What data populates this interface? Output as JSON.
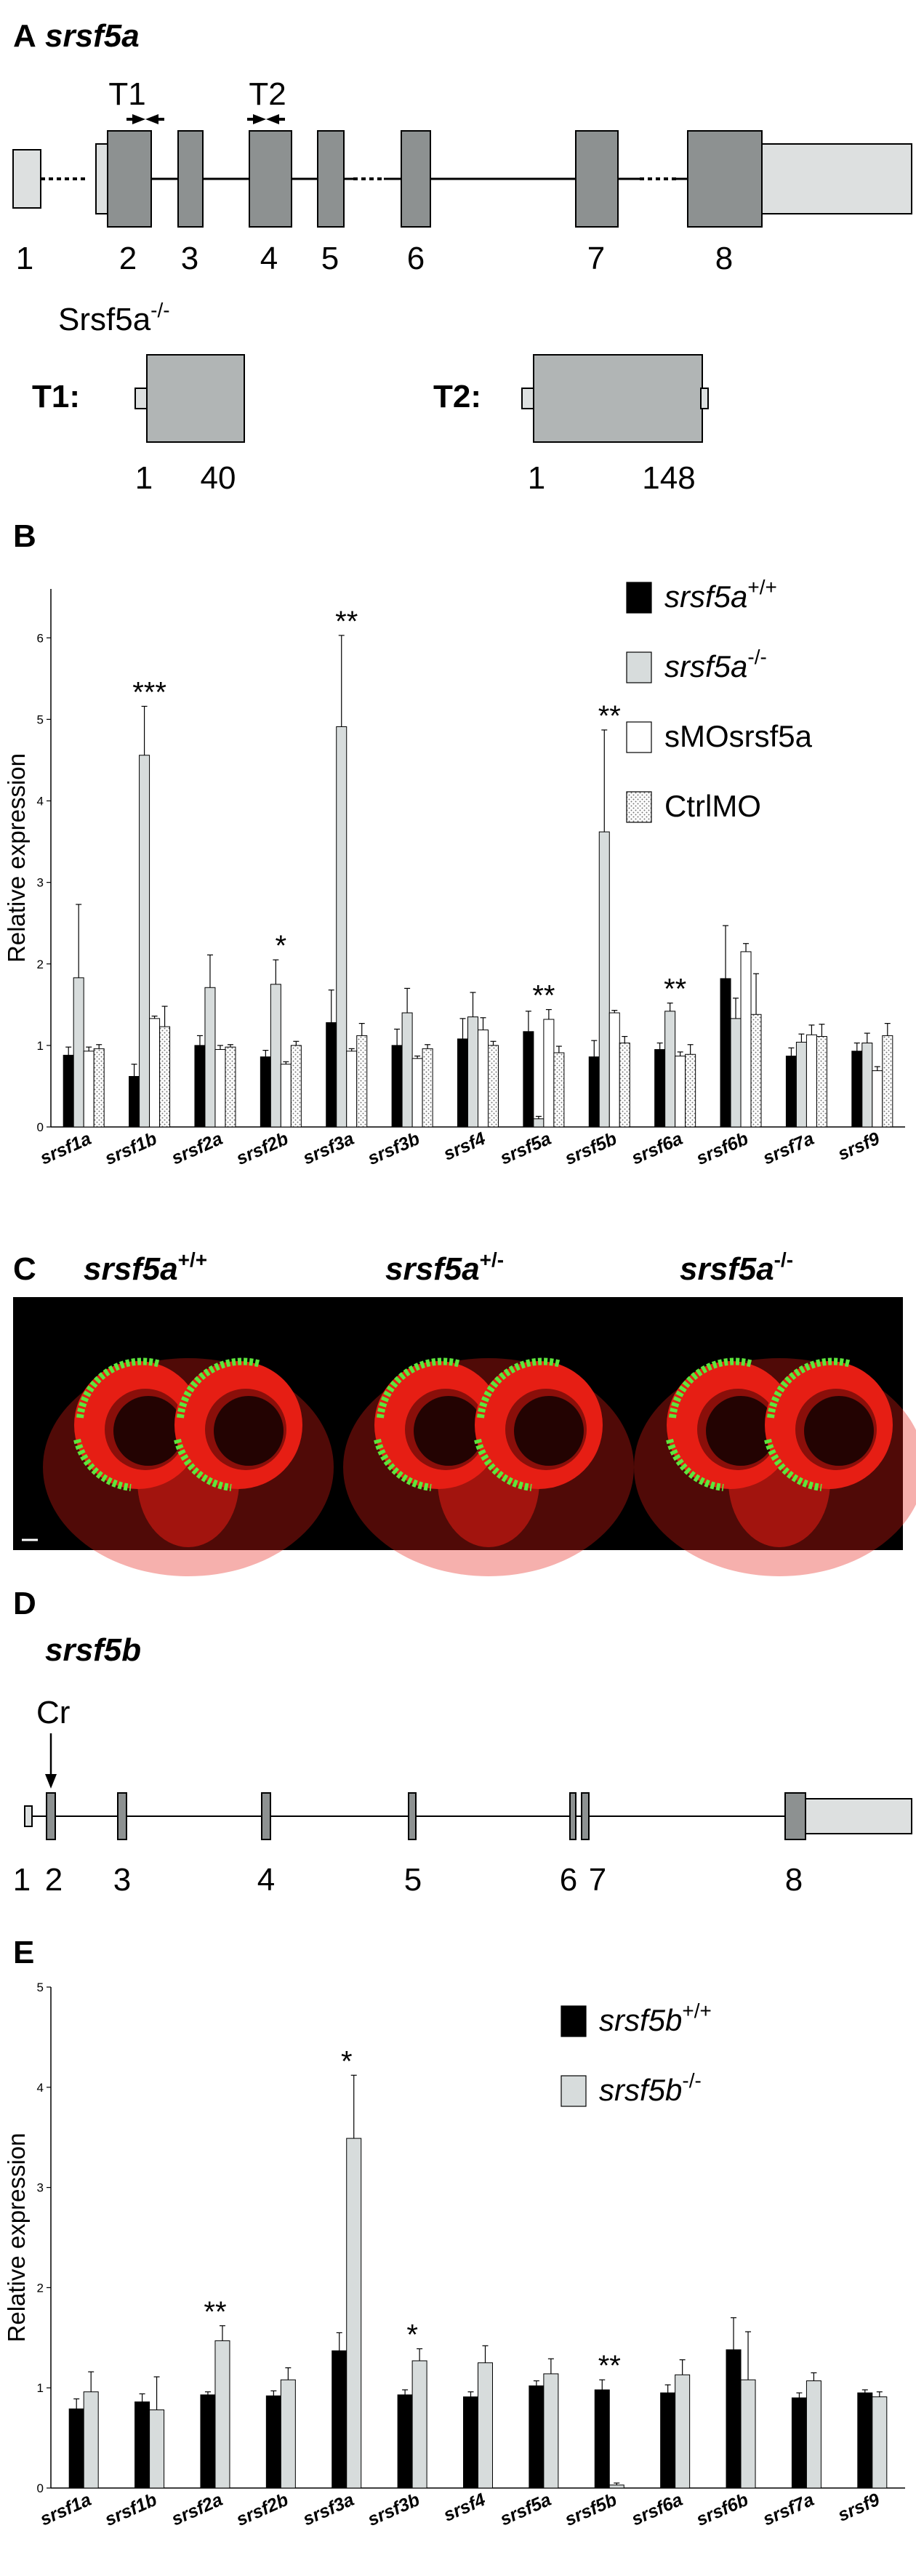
{
  "panelA": {
    "letter": "A",
    "gene": "srsf5a",
    "targets": [
      "T1",
      "T2"
    ],
    "exons": [
      "1",
      "2",
      "3",
      "4",
      "5",
      "6",
      "7",
      "8"
    ],
    "mutant_label": "Srsf5a",
    "mutant_sup": "-/-",
    "t1": {
      "label": "T1:",
      "start": "1",
      "end": "40"
    },
    "t2": {
      "label": "T2:",
      "start": "1",
      "end": "148"
    }
  },
  "panelB": {
    "letter": "B",
    "chart_data": {
      "type": "bar",
      "ylabel": "Relative expression",
      "ylim": [
        0,
        6.6
      ],
      "yticks": [
        "0",
        "1",
        "2",
        "3",
        "4",
        "5",
        "6"
      ],
      "categories": [
        "srsf1a",
        "srsf1b",
        "srsf2a",
        "srsf2b",
        "srsf3a",
        "srsf3b",
        "srsf4",
        "srsf5a",
        "srsf5b",
        "srsf6a",
        "srsf6b",
        "srsf7a",
        "srsf9"
      ],
      "series": [
        {
          "name": "srsf5a+/+",
          "base": "srsf5a",
          "sup": "+/+",
          "color": "#000000",
          "values": [
            0.88,
            0.62,
            1.0,
            0.86,
            1.28,
            1.0,
            1.08,
            1.17,
            0.86,
            0.95,
            1.82,
            0.87,
            0.93
          ],
          "errors": [
            0.1,
            0.15,
            0.12,
            0.08,
            0.4,
            0.2,
            0.25,
            0.25,
            0.2,
            0.08,
            0.65,
            0.1,
            0.1
          ]
        },
        {
          "name": "srsf5a-/-",
          "base": "srsf5a",
          "sup": "-/-",
          "color": "#d7dcdc",
          "values": [
            1.83,
            4.56,
            1.71,
            1.75,
            4.91,
            1.4,
            1.35,
            0.1,
            3.62,
            1.42,
            1.33,
            1.04,
            1.03
          ],
          "errors": [
            0.9,
            0.6,
            0.4,
            0.3,
            1.12,
            0.3,
            0.3,
            0.03,
            1.25,
            0.1,
            0.25,
            0.1,
            0.12
          ]
        },
        {
          "name": "sMOsrsf5a",
          "color": "#ffffff",
          "values": [
            0.93,
            1.33,
            0.95,
            0.77,
            0.93,
            0.84,
            1.19,
            1.32,
            1.4,
            0.87,
            2.15,
            1.13,
            0.69
          ],
          "errors": [
            0.05,
            0.03,
            0.05,
            0.03,
            0.03,
            0.03,
            0.15,
            0.12,
            0.03,
            0.05,
            0.1,
            0.12,
            0.05
          ]
        },
        {
          "name": "CtrlMO",
          "color": "#e6e6e6",
          "pattern": true,
          "values": [
            0.96,
            1.23,
            0.98,
            1.0,
            1.12,
            0.96,
            1.0,
            0.91,
            1.03,
            0.89,
            1.38,
            1.11,
            1.12
          ],
          "errors": [
            0.05,
            0.25,
            0.03,
            0.05,
            0.15,
            0.05,
            0.05,
            0.08,
            0.08,
            0.12,
            0.5,
            0.15,
            0.15
          ]
        }
      ],
      "annotations": [
        {
          "category": "srsf1b",
          "text": "***"
        },
        {
          "category": "srsf2b",
          "text": "*"
        },
        {
          "category": "srsf3a",
          "text": "**"
        },
        {
          "category": "srsf5a",
          "text": "**"
        },
        {
          "category": "srsf5b",
          "text": "**"
        },
        {
          "category": "srsf6a",
          "text": "**"
        }
      ],
      "legend_position": "top-right"
    }
  },
  "panelC": {
    "letter": "C",
    "genotypes": [
      {
        "base": "srsf5a",
        "sup": "+/+"
      },
      {
        "base": "srsf5a",
        "sup": "+/-"
      },
      {
        "base": "srsf5a",
        "sup": "-/-"
      }
    ],
    "colors": {
      "background": "#000000",
      "tissue": "#e61e14",
      "label": "#5ce63c"
    }
  },
  "panelD": {
    "letter": "D",
    "gene": "srsf5b",
    "site": "Cr",
    "exons": [
      "1",
      "2",
      "3",
      "4",
      "5",
      "6",
      "7",
      "8"
    ]
  },
  "panelE": {
    "letter": "E",
    "chart_data": {
      "type": "bar",
      "ylabel": "Relative expression",
      "ylim": [
        0,
        5
      ],
      "yticks": [
        "0",
        "1",
        "2",
        "3",
        "4",
        "5"
      ],
      "categories": [
        "srsf1a",
        "srsf1b",
        "srsf2a",
        "srsf2b",
        "srsf3a",
        "srsf3b",
        "srsf4",
        "srsf5a",
        "srsf5b",
        "srsf6a",
        "srsf6b",
        "srsf7a",
        "srsf9"
      ],
      "series": [
        {
          "name": "srsf5b+/+",
          "base": "srsf5b",
          "sup": "+/+",
          "color": "#000000",
          "values": [
            0.79,
            0.86,
            0.93,
            0.92,
            1.37,
            0.93,
            0.91,
            1.02,
            0.98,
            0.95,
            1.38,
            0.9,
            0.95
          ],
          "errors": [
            0.1,
            0.08,
            0.03,
            0.05,
            0.18,
            0.05,
            0.05,
            0.05,
            0.1,
            0.08,
            0.32,
            0.05,
            0.03
          ]
        },
        {
          "name": "srsf5b-/-",
          "base": "srsf5b",
          "sup": "-/-",
          "color": "#d7dcdc",
          "values": [
            0.96,
            0.78,
            1.47,
            1.08,
            3.49,
            1.27,
            1.25,
            1.14,
            0.03,
            1.13,
            1.08,
            1.07,
            0.91
          ],
          "errors": [
            0.2,
            0.33,
            0.15,
            0.12,
            0.63,
            0.12,
            0.17,
            0.15,
            0.02,
            0.15,
            0.48,
            0.08,
            0.05
          ]
        }
      ],
      "annotations": [
        {
          "category": "srsf2a",
          "text": "**"
        },
        {
          "category": "srsf3a",
          "text": "*"
        },
        {
          "category": "srsf3b",
          "text": "*"
        },
        {
          "category": "srsf5b",
          "text": "**"
        }
      ],
      "legend_position": "top-right"
    }
  }
}
